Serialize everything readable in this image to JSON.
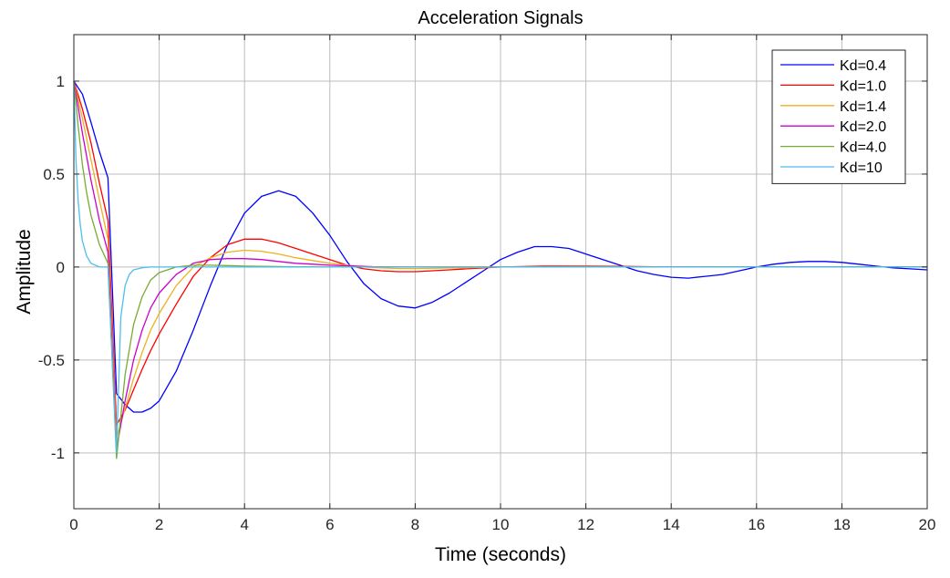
{
  "chart_data": {
    "type": "line",
    "title": "Acceleration Signals",
    "xlabel": "Time (seconds)",
    "ylabel": "Amplitude",
    "xlim": [
      0,
      20
    ],
    "ylim": [
      -1.3,
      1.25
    ],
    "xticks": [
      0,
      2,
      4,
      6,
      8,
      10,
      12,
      14,
      16,
      18,
      20
    ],
    "yticks": [
      -1,
      -0.5,
      0,
      0.5,
      1
    ],
    "xtick_labels": [
      "0",
      "2",
      "4",
      "6",
      "8",
      "10",
      "12",
      "14",
      "16",
      "18",
      "20"
    ],
    "ytick_labels": [
      "-1",
      "-0.5",
      "0",
      "0.5",
      "1"
    ],
    "grid": true,
    "legend_position": "top-right",
    "series": [
      {
        "name": "Kd=0.4",
        "color": "#0000ff",
        "x": [
          0,
          0.2,
          0.4,
          0.6,
          0.8,
          1.0,
          1.2,
          1.4,
          1.6,
          1.8,
          2.0,
          2.4,
          2.8,
          3.2,
          3.6,
          4.0,
          4.4,
          4.8,
          5.2,
          5.6,
          6.0,
          6.4,
          6.8,
          7.2,
          7.6,
          8.0,
          8.4,
          8.8,
          9.2,
          9.6,
          10.0,
          10.4,
          10.8,
          11.2,
          11.6,
          12.0,
          12.4,
          12.8,
          13.2,
          13.6,
          14.0,
          14.4,
          14.8,
          15.2,
          15.6,
          16.0,
          16.4,
          16.8,
          17.2,
          17.6,
          18.0,
          18.4,
          18.8,
          19.2,
          19.6,
          20.0
        ],
        "y": [
          1.0,
          0.93,
          0.78,
          0.62,
          0.48,
          -0.68,
          -0.74,
          -0.78,
          -0.78,
          -0.76,
          -0.72,
          -0.56,
          -0.34,
          -0.1,
          0.12,
          0.29,
          0.38,
          0.41,
          0.38,
          0.29,
          0.17,
          0.03,
          -0.09,
          -0.17,
          -0.21,
          -0.22,
          -0.19,
          -0.14,
          -0.08,
          -0.02,
          0.04,
          0.08,
          0.11,
          0.11,
          0.1,
          0.07,
          0.04,
          0.01,
          -0.02,
          -0.04,
          -0.055,
          -0.06,
          -0.05,
          -0.04,
          -0.02,
          0.0,
          0.015,
          0.025,
          0.03,
          0.03,
          0.025,
          0.015,
          0.005,
          -0.005,
          -0.01,
          -0.015
        ]
      },
      {
        "name": "Kd=1.0",
        "color": "#ff0000",
        "x": [
          0,
          0.2,
          0.4,
          0.6,
          0.8,
          1.0,
          1.2,
          1.4,
          1.6,
          1.8,
          2.0,
          2.4,
          2.8,
          3.2,
          3.6,
          4.0,
          4.4,
          4.8,
          5.2,
          5.6,
          6.0,
          6.4,
          6.8,
          7.2,
          7.6,
          8.0,
          8.4,
          8.8,
          9.2,
          9.6,
          10.0,
          11.0,
          12.0,
          13.0,
          14.0,
          16.0,
          18.0,
          20.0
        ],
        "y": [
          1.0,
          0.85,
          0.67,
          0.45,
          0.25,
          -0.85,
          -0.77,
          -0.66,
          -0.55,
          -0.45,
          -0.36,
          -0.2,
          -0.05,
          0.05,
          0.12,
          0.15,
          0.15,
          0.13,
          0.1,
          0.07,
          0.04,
          0.01,
          -0.01,
          -0.02,
          -0.025,
          -0.025,
          -0.02,
          -0.015,
          -0.01,
          -0.005,
          0.0,
          0.005,
          0.005,
          0.003,
          0.0,
          0.0,
          0.0,
          0.0
        ]
      },
      {
        "name": "Kd=1.4",
        "color": "#edb120",
        "x": [
          0,
          0.2,
          0.4,
          0.6,
          0.8,
          1.0,
          1.2,
          1.4,
          1.6,
          1.8,
          2.0,
          2.4,
          2.8,
          3.2,
          3.6,
          4.0,
          4.4,
          4.8,
          5.2,
          5.6,
          6.0,
          6.4,
          6.8,
          7.2,
          7.6,
          8.0,
          9.0,
          10.0,
          12.0,
          14.0,
          16.0,
          18.0,
          20.0
        ],
        "y": [
          1.0,
          0.8,
          0.58,
          0.36,
          0.15,
          -0.92,
          -0.76,
          -0.6,
          -0.46,
          -0.34,
          -0.25,
          -0.1,
          0.0,
          0.05,
          0.08,
          0.09,
          0.085,
          0.07,
          0.05,
          0.035,
          0.02,
          0.01,
          0.0,
          -0.005,
          -0.008,
          -0.008,
          -0.005,
          0.0,
          0.002,
          0.0,
          0.0,
          0.0,
          0.0
        ]
      },
      {
        "name": "Kd=2.0",
        "color": "#cc00cc",
        "x": [
          0,
          0.2,
          0.4,
          0.6,
          0.8,
          1.0,
          1.2,
          1.4,
          1.6,
          1.8,
          2.0,
          2.4,
          2.8,
          3.2,
          3.6,
          4.0,
          4.4,
          4.8,
          5.2,
          5.6,
          6.0,
          7.0,
          8.0,
          10.0,
          12.0,
          16.0,
          20.0
        ],
        "y": [
          1.0,
          0.72,
          0.47,
          0.25,
          0.08,
          -0.98,
          -0.72,
          -0.5,
          -0.34,
          -0.22,
          -0.14,
          -0.04,
          0.02,
          0.04,
          0.045,
          0.045,
          0.04,
          0.03,
          0.02,
          0.015,
          0.01,
          0.002,
          0.0,
          0.0,
          0.0,
          0.0,
          0.0
        ]
      },
      {
        "name": "Kd=4.0",
        "color": "#77ac30",
        "x": [
          0,
          0.1,
          0.2,
          0.3,
          0.4,
          0.6,
          0.8,
          1.0,
          1.2,
          1.4,
          1.6,
          1.8,
          2.0,
          2.4,
          2.8,
          3.2,
          3.6,
          4.0,
          5.0,
          6.0,
          8.0,
          10.0,
          12.0,
          16.0,
          20.0
        ],
        "y": [
          1.0,
          0.76,
          0.55,
          0.4,
          0.28,
          0.12,
          0.02,
          -1.03,
          -0.58,
          -0.31,
          -0.16,
          -0.07,
          -0.03,
          0.0,
          0.01,
          0.01,
          0.008,
          0.005,
          0.002,
          0.0,
          0.0,
          0.0,
          0.0,
          0.0,
          0.0
        ]
      },
      {
        "name": "Kd=10",
        "color": "#4dbeee",
        "x": [
          0,
          0.05,
          0.1,
          0.15,
          0.2,
          0.3,
          0.4,
          0.6,
          0.8,
          1.0,
          1.1,
          1.2,
          1.3,
          1.4,
          1.6,
          1.8,
          2.0,
          3.0,
          4.0,
          6.0,
          8.0,
          10.0,
          12.0,
          16.0,
          20.0
        ],
        "y": [
          1.0,
          0.58,
          0.36,
          0.23,
          0.14,
          0.06,
          0.02,
          0.0,
          0.0,
          -1.0,
          -0.27,
          -0.1,
          -0.04,
          -0.015,
          -0.004,
          0.0,
          0.0,
          0.0,
          0.0,
          0.0,
          0.0,
          0.0,
          0.0,
          0.0,
          0.0
        ]
      }
    ]
  }
}
